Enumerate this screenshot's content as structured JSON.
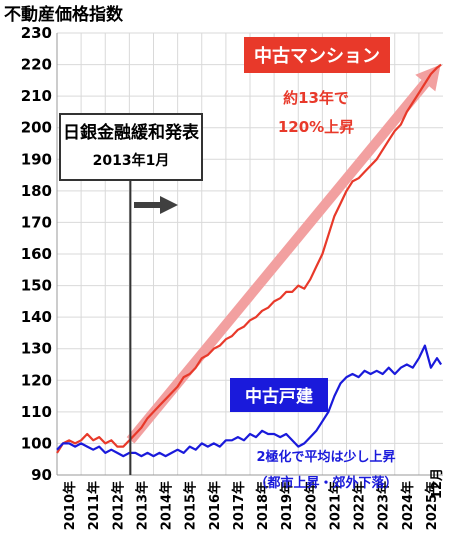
{
  "chart_data": {
    "type": "line",
    "title": "不動産価格指数",
    "xlabel": "",
    "ylabel": "",
    "ylim": [
      90,
      230
    ],
    "yticks": [
      90,
      100,
      110,
      120,
      130,
      140,
      150,
      160,
      170,
      180,
      190,
      200,
      210,
      220,
      230
    ],
    "xlim": [
      2010,
      2026
    ],
    "xticks": [
      {
        "year": 2010,
        "label": "2010年"
      },
      {
        "year": 2011,
        "label": "2011年"
      },
      {
        "year": 2012,
        "label": "2012年"
      },
      {
        "year": 2013,
        "label": "2013年"
      },
      {
        "year": 2014,
        "label": "2014年"
      },
      {
        "year": 2015,
        "label": "2015年"
      },
      {
        "year": 2016,
        "label": "2016年"
      },
      {
        "year": 2017,
        "label": "2017年"
      },
      {
        "year": 2018,
        "label": "2018年"
      },
      {
        "year": 2019,
        "label": "2019年"
      },
      {
        "year": 2020,
        "label": "2020年"
      },
      {
        "year": 2021,
        "label": "2021年"
      },
      {
        "year": 2022,
        "label": "2022年"
      },
      {
        "year": 2023,
        "label": "2023年"
      },
      {
        "year": 2024,
        "label": "2024年"
      },
      {
        "year": 2025,
        "label": "2025年"
      }
    ],
    "end_label": "12月",
    "grid": true,
    "series": [
      {
        "name": "中古マンション",
        "color": "#e8392a",
        "points": [
          [
            2010.0,
            97
          ],
          [
            2010.25,
            100
          ],
          [
            2010.5,
            101
          ],
          [
            2010.75,
            100
          ],
          [
            2011.0,
            101
          ],
          [
            2011.25,
            103
          ],
          [
            2011.5,
            101
          ],
          [
            2011.75,
            102
          ],
          [
            2012.0,
            100
          ],
          [
            2012.25,
            101
          ],
          [
            2012.5,
            99
          ],
          [
            2012.75,
            99
          ],
          [
            2013.0,
            101
          ],
          [
            2013.25,
            103
          ],
          [
            2013.5,
            105
          ],
          [
            2013.75,
            108
          ],
          [
            2014.0,
            110
          ],
          [
            2014.25,
            112
          ],
          [
            2014.5,
            114
          ],
          [
            2014.75,
            116
          ],
          [
            2015.0,
            118
          ],
          [
            2015.25,
            121
          ],
          [
            2015.5,
            122
          ],
          [
            2015.75,
            124
          ],
          [
            2016.0,
            127
          ],
          [
            2016.25,
            128
          ],
          [
            2016.5,
            130
          ],
          [
            2016.75,
            131
          ],
          [
            2017.0,
            133
          ],
          [
            2017.25,
            134
          ],
          [
            2017.5,
            136
          ],
          [
            2017.75,
            137
          ],
          [
            2018.0,
            139
          ],
          [
            2018.25,
            140
          ],
          [
            2018.5,
            142
          ],
          [
            2018.75,
            143
          ],
          [
            2019.0,
            145
          ],
          [
            2019.25,
            146
          ],
          [
            2019.5,
            148
          ],
          [
            2019.75,
            148
          ],
          [
            2020.0,
            150
          ],
          [
            2020.25,
            149
          ],
          [
            2020.5,
            152
          ],
          [
            2020.75,
            156
          ],
          [
            2021.0,
            160
          ],
          [
            2021.25,
            166
          ],
          [
            2021.5,
            172
          ],
          [
            2021.75,
            176
          ],
          [
            2022.0,
            180
          ],
          [
            2022.25,
            183
          ],
          [
            2022.5,
            184
          ],
          [
            2022.75,
            186
          ],
          [
            2023.0,
            188
          ],
          [
            2023.25,
            190
          ],
          [
            2023.5,
            193
          ],
          [
            2023.75,
            196
          ],
          [
            2024.0,
            199
          ],
          [
            2024.25,
            201
          ],
          [
            2024.5,
            205
          ],
          [
            2024.75,
            208
          ],
          [
            2025.0,
            211
          ],
          [
            2025.25,
            214
          ],
          [
            2025.5,
            217
          ],
          [
            2025.75,
            219
          ],
          [
            2025.92,
            220
          ]
        ]
      },
      {
        "name": "中古戸建",
        "color": "#1a1adb",
        "points": [
          [
            2010.0,
            98
          ],
          [
            2010.25,
            100
          ],
          [
            2010.5,
            100
          ],
          [
            2010.75,
            99
          ],
          [
            2011.0,
            100
          ],
          [
            2011.25,
            99
          ],
          [
            2011.5,
            98
          ],
          [
            2011.75,
            99
          ],
          [
            2012.0,
            97
          ],
          [
            2012.25,
            98
          ],
          [
            2012.5,
            97
          ],
          [
            2012.75,
            96
          ],
          [
            2013.0,
            97
          ],
          [
            2013.25,
            97
          ],
          [
            2013.5,
            96
          ],
          [
            2013.75,
            97
          ],
          [
            2014.0,
            96
          ],
          [
            2014.25,
            97
          ],
          [
            2014.5,
            96
          ],
          [
            2014.75,
            97
          ],
          [
            2015.0,
            98
          ],
          [
            2015.25,
            97
          ],
          [
            2015.5,
            99
          ],
          [
            2015.75,
            98
          ],
          [
            2016.0,
            100
          ],
          [
            2016.25,
            99
          ],
          [
            2016.5,
            100
          ],
          [
            2016.75,
            99
          ],
          [
            2017.0,
            101
          ],
          [
            2017.25,
            101
          ],
          [
            2017.5,
            102
          ],
          [
            2017.75,
            101
          ],
          [
            2018.0,
            103
          ],
          [
            2018.25,
            102
          ],
          [
            2018.5,
            104
          ],
          [
            2018.75,
            103
          ],
          [
            2019.0,
            103
          ],
          [
            2019.25,
            102
          ],
          [
            2019.5,
            103
          ],
          [
            2019.75,
            101
          ],
          [
            2020.0,
            99
          ],
          [
            2020.25,
            100
          ],
          [
            2020.5,
            102
          ],
          [
            2020.75,
            104
          ],
          [
            2021.0,
            107
          ],
          [
            2021.25,
            110
          ],
          [
            2021.5,
            115
          ],
          [
            2021.75,
            119
          ],
          [
            2022.0,
            121
          ],
          [
            2022.25,
            122
          ],
          [
            2022.5,
            121
          ],
          [
            2022.75,
            123
          ],
          [
            2023.0,
            122
          ],
          [
            2023.25,
            123
          ],
          [
            2023.5,
            122
          ],
          [
            2023.75,
            124
          ],
          [
            2024.0,
            122
          ],
          [
            2024.25,
            124
          ],
          [
            2024.5,
            125
          ],
          [
            2024.75,
            124
          ],
          [
            2025.0,
            127
          ],
          [
            2025.25,
            131
          ],
          [
            2025.5,
            124
          ],
          [
            2025.75,
            127
          ],
          [
            2025.92,
            125
          ]
        ]
      }
    ],
    "annotations": {
      "event_year": 2013.0,
      "event_box_line1": "日銀金融緩和発表",
      "event_box_line2": "2013年1月",
      "trend_arrow": {
        "from": [
          2013.05,
          101
        ],
        "to": [
          2025.9,
          220
        ],
        "color": "#f2a0a0"
      },
      "label_mansion": "中古マンション",
      "label_mansion_bg": "#e8392a",
      "note_mansion_1": "約13年で",
      "note_mansion_2": "120%上昇",
      "label_house": "中古戸建",
      "label_house_bg": "#1a1adb",
      "note_house_1": "2極化で平均は少し上昇",
      "note_house_2": "（都市上昇・郊外下落）"
    }
  }
}
